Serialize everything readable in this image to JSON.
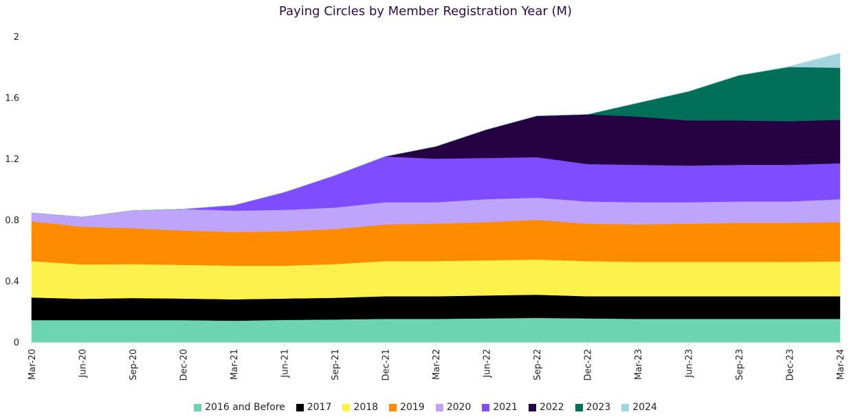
{
  "chart_data": {
    "type": "area",
    "stacked": true,
    "title": "Paying Circles by Member Registration Year (M)",
    "xlabel": "",
    "ylabel": "",
    "ylim": [
      0,
      2
    ],
    "yticks": [
      "0",
      "0.4",
      "0.8",
      "1.2",
      "1.6",
      "2"
    ],
    "grid": false,
    "legend": "bottom",
    "categories": [
      "Mar-20",
      "Jun-20",
      "Sep-20",
      "Dec-20",
      "Mar-21",
      "Jun-21",
      "Sep-21",
      "Dec-21",
      "Mar-22",
      "Jun-22",
      "Sep-22",
      "Dec-22",
      "Mar-23",
      "Jun-23",
      "Sep-23",
      "Dec-23",
      "Mar-24"
    ],
    "series": [
      {
        "name": "2016 and Before",
        "color": "#6cd4b0",
        "values": [
          0.144,
          0.144,
          0.144,
          0.144,
          0.14,
          0.145,
          0.148,
          0.152,
          0.152,
          0.155,
          0.158,
          0.155,
          0.152,
          0.152,
          0.152,
          0.152,
          0.152
        ]
      },
      {
        "name": "2017",
        "color": "#000000",
        "values": [
          0.148,
          0.139,
          0.144,
          0.141,
          0.14,
          0.14,
          0.142,
          0.148,
          0.148,
          0.15,
          0.152,
          0.145,
          0.148,
          0.148,
          0.148,
          0.148,
          0.148
        ]
      },
      {
        "name": "2018",
        "color": "#fdf24d",
        "values": [
          0.238,
          0.225,
          0.222,
          0.22,
          0.22,
          0.215,
          0.22,
          0.23,
          0.23,
          0.23,
          0.23,
          0.23,
          0.225,
          0.225,
          0.225,
          0.225,
          0.228
        ]
      },
      {
        "name": "2019",
        "color": "#ff8c00",
        "values": [
          0.26,
          0.247,
          0.235,
          0.225,
          0.22,
          0.225,
          0.23,
          0.24,
          0.245,
          0.25,
          0.26,
          0.245,
          0.245,
          0.25,
          0.255,
          0.255,
          0.257
        ]
      },
      {
        "name": "2020",
        "color": "#bea4fb",
        "values": [
          0.055,
          0.063,
          0.115,
          0.14,
          0.14,
          0.14,
          0.14,
          0.145,
          0.14,
          0.15,
          0.145,
          0.145,
          0.145,
          0.14,
          0.14,
          0.14,
          0.15
        ]
      },
      {
        "name": "2021",
        "color": "#7f4cff",
        "values": [
          0,
          0,
          0,
          0,
          0.035,
          0.115,
          0.21,
          0.3,
          0.285,
          0.27,
          0.265,
          0.245,
          0.245,
          0.24,
          0.24,
          0.24,
          0.235
        ]
      },
      {
        "name": "2022",
        "color": "#260042",
        "values": [
          0,
          0,
          0,
          0,
          0,
          0,
          0,
          0,
          0.08,
          0.185,
          0.27,
          0.325,
          0.315,
          0.295,
          0.29,
          0.285,
          0.285
        ]
      },
      {
        "name": "2023",
        "color": "#006f57",
        "values": [
          0,
          0,
          0,
          0,
          0,
          0,
          0,
          0,
          0,
          0,
          0,
          0,
          0.09,
          0.19,
          0.295,
          0.355,
          0.34
        ]
      },
      {
        "name": "2024",
        "color": "#a3d5e0",
        "values": [
          0,
          0,
          0,
          0,
          0,
          0,
          0,
          0,
          0,
          0,
          0,
          0,
          0,
          0,
          0,
          0.005,
          0.095
        ]
      }
    ]
  }
}
